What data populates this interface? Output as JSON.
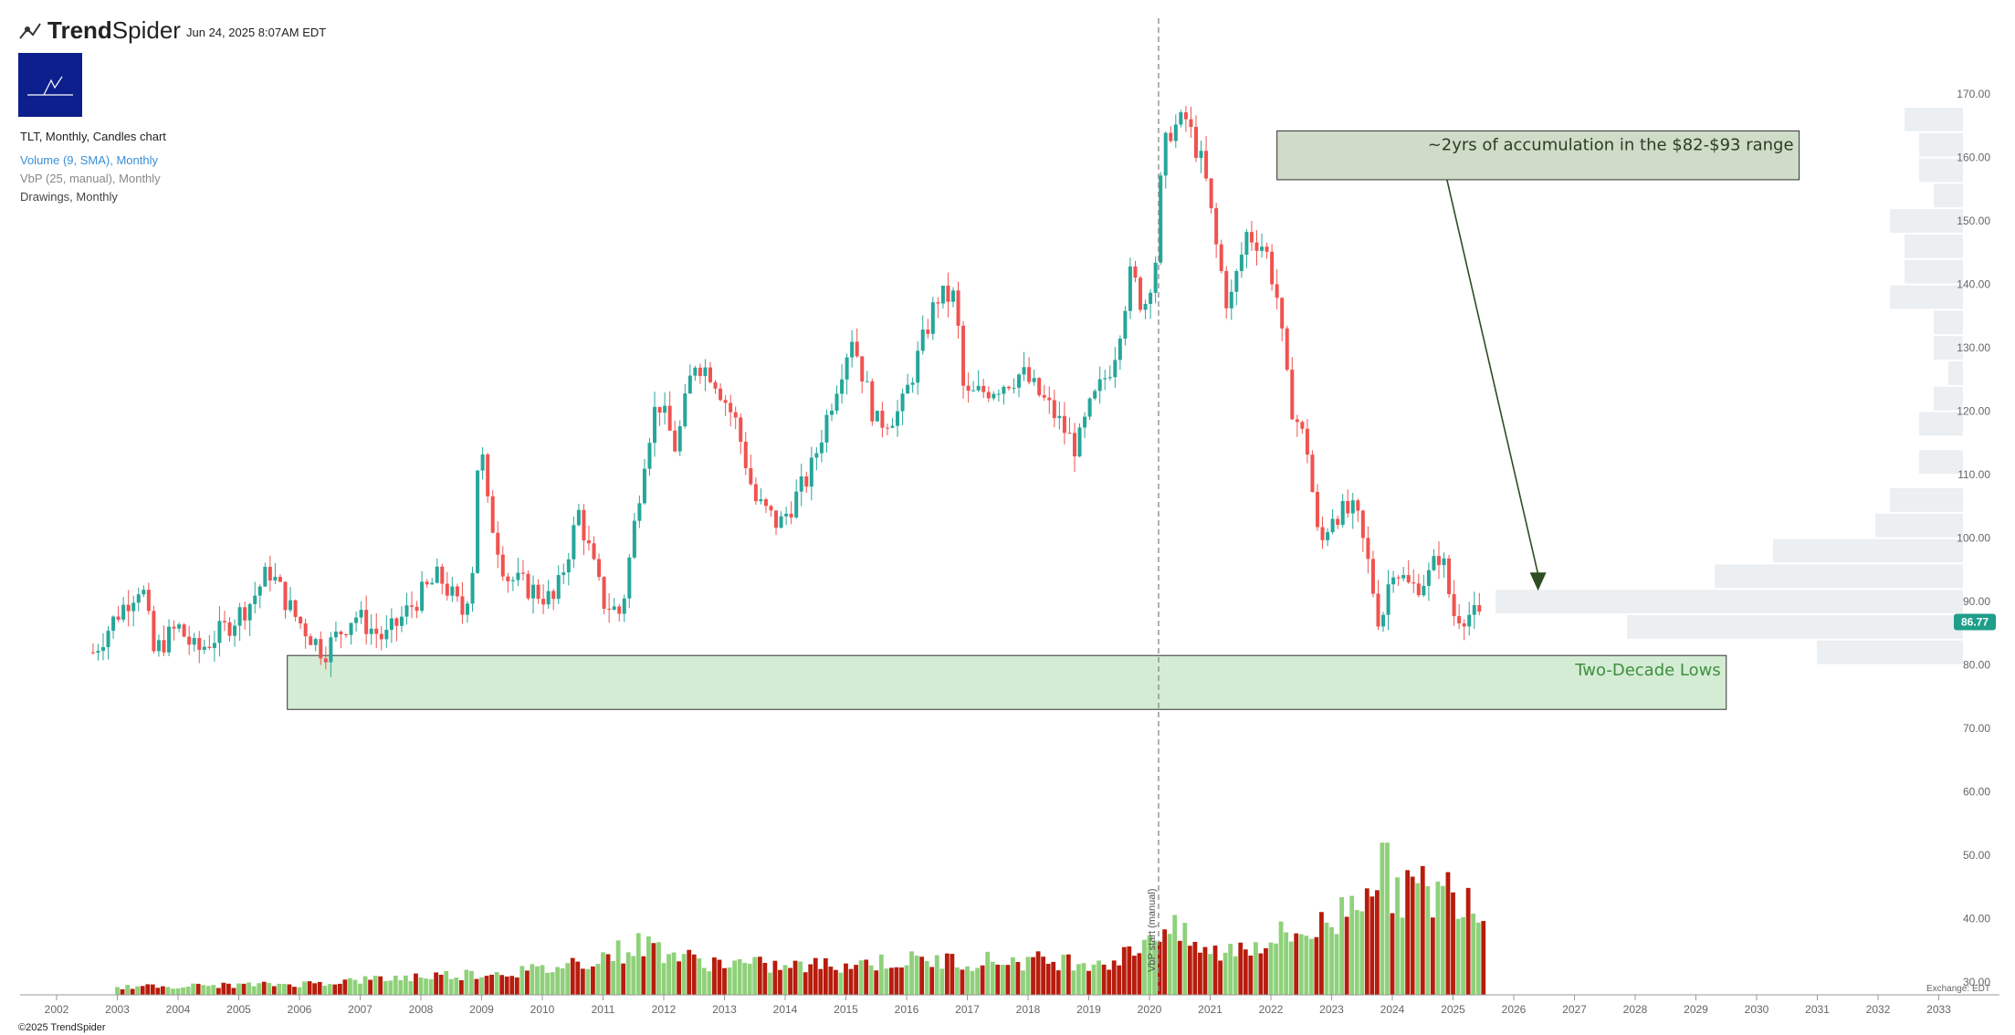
{
  "header": {
    "brand_bold": "Trend",
    "brand_light": "Spider",
    "timestamp": "Jun 24, 2025 8:07AM EDT",
    "logo_icon": "trendspider-logo-icon"
  },
  "legend": {
    "main": "TLT, Monthly, Candles chart",
    "volume": "Volume (9, SMA), Monthly",
    "vbp": "VbP (25, manual), Monthly",
    "drawings": "Drawings, Monthly"
  },
  "footer": {
    "copyright": "©2025 TrendSpider",
    "exchange": "Exchange: EDT"
  },
  "annotations": {
    "accumulation": "~2yrs of accumulation in the $82-$93 range",
    "lows": "Two-Decade Lows",
    "vbp_start": "VbP start (manual)"
  },
  "price_badge": "86.77",
  "colors": {
    "up": "#26a69a",
    "down": "#ef5350",
    "vol_up": "#8fd17a",
    "vol_down": "#b71c0c",
    "lows_fill": "#d4ecd4",
    "accum_fill": "#cfdcc8",
    "arrow": "#2e4d22"
  },
  "chart_data": {
    "type": "candlestick",
    "symbol": "TLT",
    "interval": "Monthly",
    "x_ticks": [
      "2002",
      "2003",
      "2004",
      "2005",
      "2006",
      "2007",
      "2008",
      "2009",
      "2010",
      "2011",
      "2012",
      "2013",
      "2014",
      "2015",
      "2016",
      "2017",
      "2018",
      "2019",
      "2020",
      "2021",
      "2022",
      "2023",
      "2024",
      "2025",
      "2026",
      "2027",
      "2028",
      "2029",
      "2030",
      "2031",
      "2032",
      "2033"
    ],
    "y_ticks": [
      "30.00",
      "40.00",
      "50.00",
      "60.00",
      "70.00",
      "80.00",
      "90.00",
      "100.00",
      "110.00",
      "120.00",
      "130.00",
      "140.00",
      "150.00",
      "160.00",
      "170.00"
    ],
    "ylim": [
      28,
      178
    ],
    "last_price": 86.77,
    "price_path": [
      [
        2002.6,
        82
      ],
      [
        2003.0,
        88
      ],
      [
        2003.4,
        93
      ],
      [
        2003.6,
        82
      ],
      [
        2004.0,
        86
      ],
      [
        2004.3,
        82
      ],
      [
        2004.8,
        86
      ],
      [
        2005.2,
        90
      ],
      [
        2005.5,
        95
      ],
      [
        2005.9,
        88
      ],
      [
        2006.4,
        82
      ],
      [
        2006.9,
        88
      ],
      [
        2007.4,
        84
      ],
      [
        2007.9,
        90
      ],
      [
        2008.3,
        94
      ],
      [
        2008.7,
        88
      ],
      [
        2008.9,
        98
      ],
      [
        2008.95,
        118
      ],
      [
        2009.1,
        105
      ],
      [
        2009.4,
        94
      ],
      [
        2009.8,
        92
      ],
      [
        2010.2,
        90
      ],
      [
        2010.6,
        104
      ],
      [
        2011.0,
        90
      ],
      [
        2011.3,
        88
      ],
      [
        2011.7,
        114
      ],
      [
        2011.9,
        122
      ],
      [
        2012.2,
        114
      ],
      [
        2012.5,
        128
      ],
      [
        2012.8,
        126
      ],
      [
        2013.2,
        118
      ],
      [
        2013.5,
        106
      ],
      [
        2013.9,
        102
      ],
      [
        2014.4,
        110
      ],
      [
        2014.9,
        126
      ],
      [
        2015.1,
        132
      ],
      [
        2015.5,
        118
      ],
      [
        2015.9,
        120
      ],
      [
        2016.5,
        138
      ],
      [
        2016.8,
        138
      ],
      [
        2016.95,
        122
      ],
      [
        2017.5,
        124
      ],
      [
        2017.9,
        126
      ],
      [
        2018.4,
        120
      ],
      [
        2018.8,
        114
      ],
      [
        2019.0,
        120
      ],
      [
        2019.4,
        128
      ],
      [
        2019.7,
        142
      ],
      [
        2019.9,
        136
      ],
      [
        2020.1,
        144
      ],
      [
        2020.2,
        158
      ],
      [
        2020.3,
        164
      ],
      [
        2020.6,
        166
      ],
      [
        2020.9,
        158
      ],
      [
        2021.1,
        146
      ],
      [
        2021.3,
        136
      ],
      [
        2021.6,
        148
      ],
      [
        2021.9,
        146
      ],
      [
        2022.1,
        138
      ],
      [
        2022.3,
        122
      ],
      [
        2022.6,
        114
      ],
      [
        2022.8,
        98
      ],
      [
        2023.0,
        104
      ],
      [
        2023.4,
        104
      ],
      [
        2023.6,
        96
      ],
      [
        2023.8,
        86
      ],
      [
        2024.0,
        96
      ],
      [
        2024.3,
        92
      ],
      [
        2024.6,
        94
      ],
      [
        2024.8,
        98
      ],
      [
        2025.0,
        88
      ],
      [
        2025.3,
        88
      ],
      [
        2025.5,
        86.77
      ]
    ],
    "volume_shape": [
      [
        2003.0,
        0.05
      ],
      [
        2006.0,
        0.07
      ],
      [
        2008.0,
        0.12
      ],
      [
        2010.0,
        0.16
      ],
      [
        2011.0,
        0.25
      ],
      [
        2011.7,
        0.33
      ],
      [
        2012.5,
        0.22
      ],
      [
        2014.0,
        0.18
      ],
      [
        2016.0,
        0.22
      ],
      [
        2018.0,
        0.22
      ],
      [
        2019.5,
        0.22
      ],
      [
        2020.2,
        0.45
      ],
      [
        2021.0,
        0.26
      ],
      [
        2022.0,
        0.36
      ],
      [
        2023.0,
        0.45
      ],
      [
        2023.7,
        0.82
      ],
      [
        2024.2,
        0.68
      ],
      [
        2024.7,
        0.65
      ],
      [
        2025.2,
        0.7
      ],
      [
        2025.5,
        0.55
      ]
    ],
    "vbp_profile": [
      [
        82,
        0.1
      ],
      [
        86,
        0.23
      ],
      [
        90,
        0.32
      ],
      [
        94,
        0.17
      ],
      [
        98,
        0.13
      ],
      [
        102,
        0.06
      ],
      [
        106,
        0.05
      ],
      [
        112,
        0.03
      ],
      [
        118,
        0.03
      ],
      [
        122,
        0.02
      ],
      [
        126,
        0.01
      ],
      [
        130,
        0.02
      ],
      [
        134,
        0.02
      ],
      [
        138,
        0.05
      ],
      [
        142,
        0.04
      ],
      [
        146,
        0.04
      ],
      [
        150,
        0.05
      ],
      [
        154,
        0.02
      ],
      [
        158,
        0.03
      ],
      [
        162,
        0.03
      ],
      [
        166,
        0.04
      ]
    ],
    "zones": {
      "lows": {
        "x0": 2005.8,
        "x1": 2029.5,
        "y0": 73,
        "y1": 81.5
      },
      "accumulation": {
        "x0": 2022.1,
        "x1": 2030.7,
        "y0": 156.5,
        "y1": 164.2
      }
    },
    "vbp_start_x": 2020.15
  }
}
